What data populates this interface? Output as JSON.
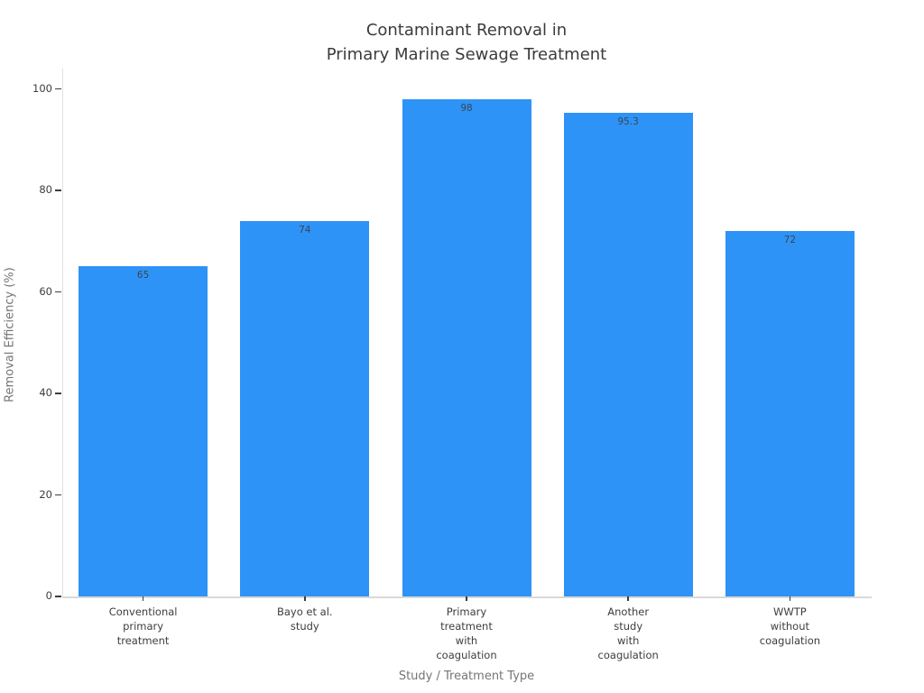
{
  "chart_data": {
    "type": "bar",
    "title": "Contaminant Removal in\nPrimary Marine Sewage Treatment",
    "xlabel": "Study / Treatment Type",
    "ylabel": "Removal Efficiency (%)",
    "categories": [
      "Conventional\nprimary\ntreatment",
      "Bayo et al.\nstudy",
      "Primary\ntreatment\nwith\ncoagulation",
      "Another\nstudy\nwith\ncoagulation",
      "WWTP\nwithout\ncoagulation"
    ],
    "values": [
      65,
      74,
      98,
      95.3,
      72
    ],
    "value_labels": [
      "65",
      "74",
      "98",
      "95.3",
      "72"
    ],
    "yticks": [
      0,
      20,
      40,
      60,
      80,
      100
    ],
    "ylim": [
      0,
      104
    ],
    "bar_color": "#2e93f7",
    "grid": "off",
    "legend": "none"
  }
}
